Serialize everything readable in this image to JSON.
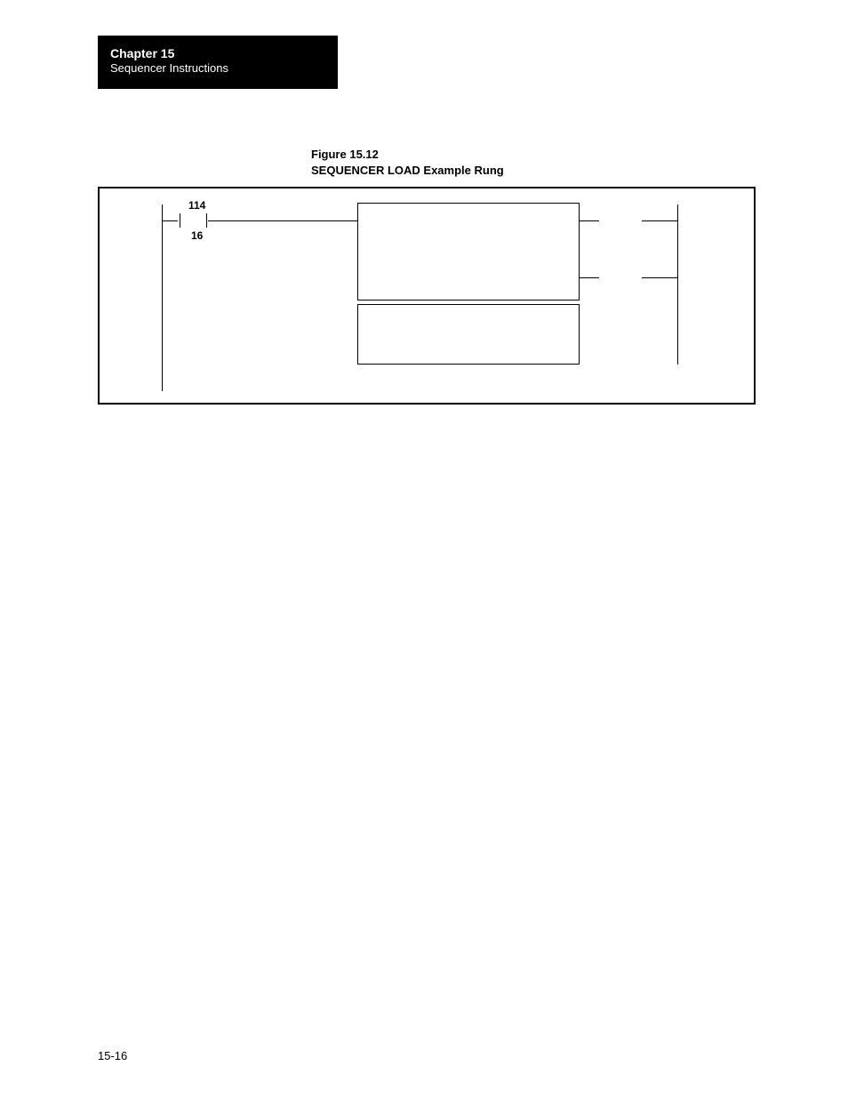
{
  "header": {
    "chapter_label": "Chapter 15",
    "section_label": "Sequencer Instructions",
    "bg_color": "#000000",
    "fg_color": "#ffffff"
  },
  "figure": {
    "caption_line1": "Figure 15.12",
    "caption_line2": "SEQUENCER LOAD Example Rung",
    "border_color": "#000000"
  },
  "ladder": {
    "contact_address_top": "114",
    "contact_address_bottom": "16"
  },
  "footer": {
    "page_number": "15-16"
  }
}
